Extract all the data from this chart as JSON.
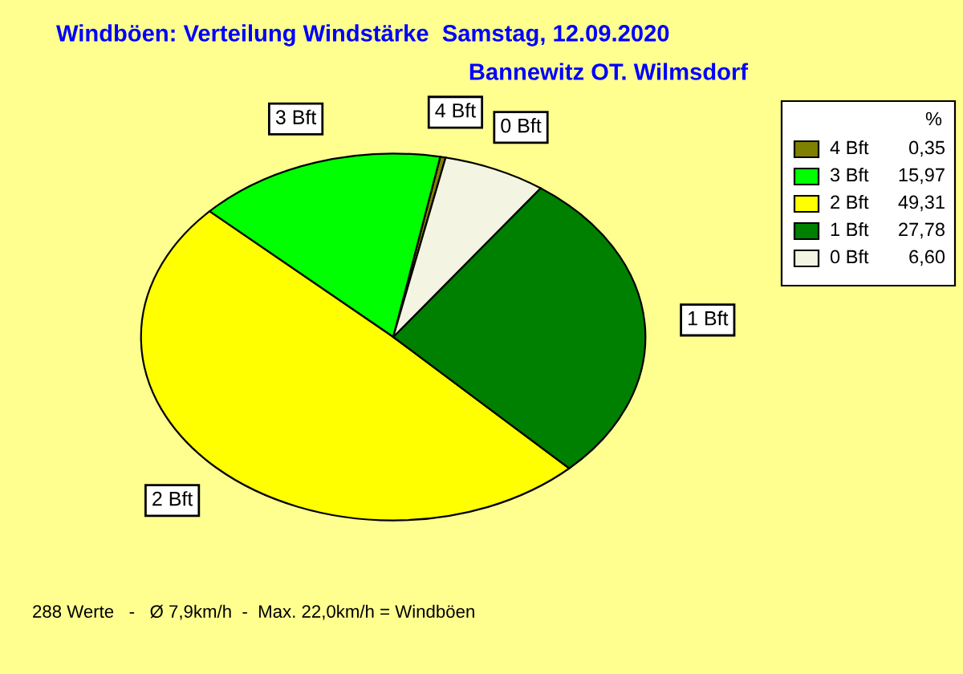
{
  "chart_data": {
    "type": "pie",
    "title": "Windböen: Verteilung Windstärke  Samstag, 12.09.2020",
    "subtitle": "Bannewitz OT. Wilmsdorf",
    "legend_title": "%",
    "categories": [
      "4 Bft",
      "3 Bft",
      "2 Bft",
      "1 Bft",
      "0 Bft"
    ],
    "values": [
      0.35,
      15.97,
      49.31,
      27.78,
      6.6
    ],
    "value_labels": [
      "0,35",
      "15,97",
      "49,31",
      "27,78",
      "6,60"
    ],
    "colors": [
      "#808000",
      "#00ff00",
      "#ffff00",
      "#008000",
      "#f4f4e2"
    ],
    "legend": "top right",
    "annotations": [
      "288 Werte   -   Ø 7,9km/h  -  Max. 22,0km/h = Windböen"
    ]
  }
}
